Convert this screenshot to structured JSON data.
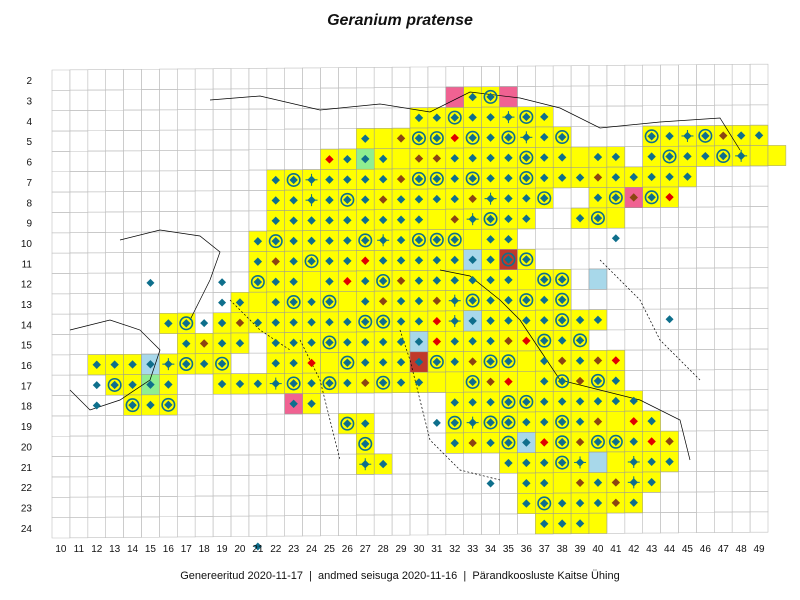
{
  "map": {
    "title": "Geranium pratense",
    "footer": "Genereeritud 2020-11-17  |  andmed seisuga 2020-11-16  |  Pärandkoosluste Kaitse Ühing",
    "grid": {
      "row_labels": [
        "2",
        "3",
        "4",
        "5",
        "6",
        "7",
        "8",
        "9",
        "10",
        "11",
        "12",
        "13",
        "14",
        "15",
        "16",
        "17",
        "18",
        "19",
        "20",
        "21",
        "22",
        "23",
        "24"
      ],
      "col_labels": [
        "10",
        "11",
        "12",
        "13",
        "14",
        "15",
        "16",
        "17",
        "18",
        "19",
        "20",
        "21",
        "22",
        "23",
        "24",
        "25",
        "26",
        "27",
        "28",
        "29",
        "30",
        "31",
        "32",
        "33",
        "34",
        "35",
        "36",
        "37",
        "38",
        "39",
        "40",
        "41",
        "42",
        "43",
        "44",
        "45",
        "46",
        "47",
        "48",
        "49"
      ]
    },
    "colors": {
      "occupied_cell": "#ffff00",
      "pink_cell": "#f06292",
      "lightblue_cell": "#a8d8ea",
      "green_cell": "#90ee90",
      "dark_red_cell": "#c0392b",
      "teal_marker": "#0e6f8c",
      "brown_marker": "#8b4513",
      "red_marker": "#e00000",
      "grid_line": "#c0c0c0",
      "coast": "#000000"
    },
    "special_cells": {
      "pink": [
        [
          "32",
          "3"
        ],
        [
          "35",
          "3"
        ],
        [
          "42",
          "8"
        ],
        [
          "23",
          "18"
        ]
      ],
      "lightblue": [
        [
          "33",
          "11"
        ],
        [
          "40",
          "12"
        ],
        [
          "33",
          "14"
        ],
        [
          "15",
          "16"
        ],
        [
          "30",
          "15"
        ],
        [
          "36",
          "20"
        ],
        [
          "40",
          "21"
        ]
      ],
      "green": [
        [
          "27",
          "6"
        ],
        [
          "15",
          "17"
        ]
      ],
      "darkred": [
        [
          "35",
          "11"
        ],
        [
          "30",
          "16"
        ]
      ]
    },
    "legend_icons": [
      "diamond-marker-icon",
      "ring-marker-icon",
      "crosshair-marker-icon"
    ]
  }
}
